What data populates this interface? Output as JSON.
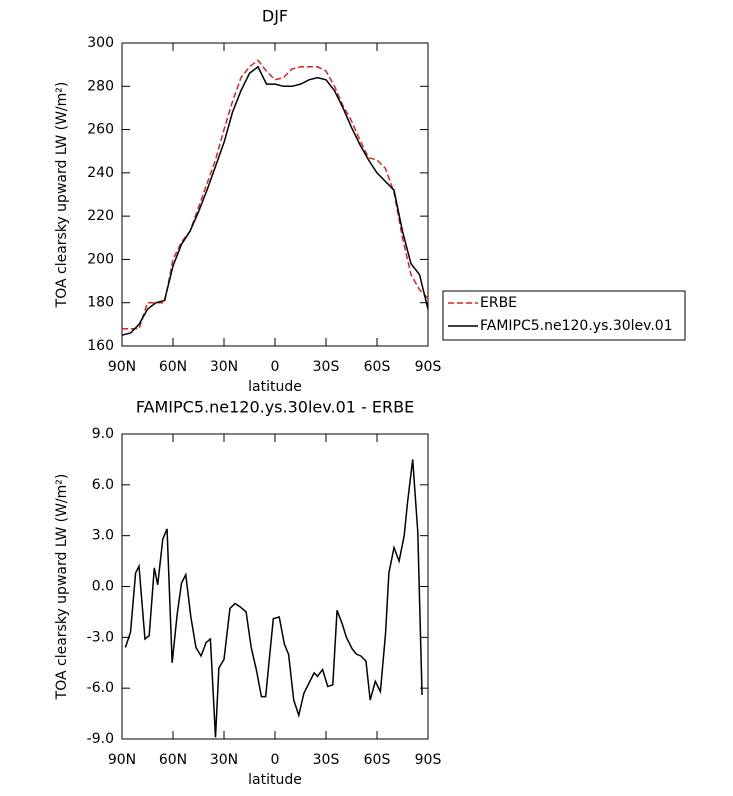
{
  "chart_data": [
    {
      "type": "line",
      "title": "DJF",
      "x_label": "latitude",
      "y_label": "TOA clearsky upward LW (W/m²)",
      "x": [
        90,
        85,
        80,
        75,
        70,
        65,
        60,
        55,
        50,
        45,
        40,
        35,
        30,
        25,
        20,
        15,
        10,
        5,
        0,
        -5,
        -10,
        -15,
        -20,
        -25,
        -30,
        -35,
        -40,
        -45,
        -50,
        -55,
        -60,
        -65,
        -70,
        -75,
        -80,
        -85,
        -90
      ],
      "xlim": [
        90,
        -90
      ],
      "xticks": [
        {
          "value": 90,
          "label": "90N"
        },
        {
          "value": 60,
          "label": "60N"
        },
        {
          "value": 30,
          "label": "30N"
        },
        0,
        {
          "value": -30,
          "label": "30S"
        },
        {
          "value": -60,
          "label": "60S"
        },
        {
          "value": -90,
          "label": "90S"
        }
      ],
      "ylim": [
        160,
        300
      ],
      "yticks": [
        160,
        180,
        200,
        220,
        240,
        260,
        280,
        300
      ],
      "legend": "right",
      "series": [
        {
          "name": "ERBE",
          "color": "#e02020",
          "line_style": "dashed",
          "values": [
            168,
            168,
            168,
            180,
            180,
            180,
            200,
            208,
            213,
            224,
            235,
            246,
            260,
            273,
            284,
            289,
            292,
            287,
            283,
            284,
            288,
            289,
            289,
            289,
            287,
            280,
            271,
            264,
            255,
            247,
            246,
            242,
            231,
            210,
            193,
            186,
            182
          ]
        },
        {
          "name": "FAMIPC5.ne120.ys.30lev.01",
          "color": "#000000",
          "line_style": "solid",
          "values": [
            165,
            166,
            170,
            177,
            180,
            181,
            197,
            207,
            213,
            222,
            232,
            243,
            254,
            268,
            278,
            286,
            289,
            281,
            281,
            280,
            280,
            281,
            283,
            284,
            283,
            278,
            270,
            261,
            253,
            246,
            240,
            236,
            232,
            213,
            198,
            193,
            177
          ]
        }
      ]
    },
    {
      "type": "line",
      "title": "FAMIPC5.ne120.ys.30lev.01 - ERBE",
      "x_label": "latitude",
      "y_label": "TOA clearsky upward LW (W/m²)",
      "x": [
        88,
        85,
        82,
        80,
        76.5,
        74,
        71,
        69,
        66,
        63.5,
        60.5,
        57.5,
        55,
        52.5,
        49.5,
        46.5,
        43.5,
        40.5,
        38,
        35,
        33,
        30,
        26.5,
        23.5,
        20.5,
        17,
        14,
        11,
        8,
        5.5,
        1,
        -2.5,
        -5.5,
        -8,
        -11,
        -14,
        -17,
        -19.5,
        -23,
        -25,
        -28,
        -31,
        -34,
        -36.5,
        -39.5,
        -42,
        -45.5,
        -48,
        -50.5,
        -53.5,
        -56,
        -59,
        -62,
        -65,
        -67,
        -70,
        -73,
        -76,
        -78,
        -81,
        -84,
        -86.5
      ],
      "xlim": [
        90,
        -90
      ],
      "xticks": [
        {
          "value": 90,
          "label": "90N"
        },
        {
          "value": 60,
          "label": "60N"
        },
        {
          "value": 30,
          "label": "30N"
        },
        0,
        {
          "value": -30,
          "label": "30S"
        },
        {
          "value": -60,
          "label": "60S"
        },
        {
          "value": -90,
          "label": "90S"
        }
      ],
      "ylim": [
        -9,
        9
      ],
      "yticks": [
        {
          "value": -9,
          "label": "-9.0"
        },
        {
          "value": -6,
          "label": "-6.0"
        },
        {
          "value": -3,
          "label": "-3.0"
        },
        {
          "value": 0,
          "label": "0.0"
        },
        {
          "value": 3,
          "label": "3.0"
        },
        {
          "value": 6,
          "label": "6.0"
        },
        {
          "value": 9,
          "label": "9.0"
        }
      ],
      "series": [
        {
          "color": "#000000",
          "line_style": "solid",
          "values": [
            -3.6,
            -2.7,
            0.8,
            1.2,
            -3.1,
            -2.9,
            1.1,
            0.1,
            2.8,
            3.4,
            -4.5,
            -1.6,
            0.2,
            0.7,
            -1.8,
            -3.6,
            -4.1,
            -3.3,
            -3.1,
            -8.9,
            -4.8,
            -4.3,
            -1.3,
            -1.0,
            -1.2,
            -1.5,
            -3.6,
            -4.9,
            -6.5,
            -6.5,
            -1.9,
            -1.8,
            -3.4,
            -4.0,
            -6.7,
            -7.6,
            -6.3,
            -5.8,
            -5.1,
            -5.3,
            -4.9,
            -5.9,
            -5.8,
            -1.4,
            -2.2,
            -3.0,
            -3.7,
            -4.0,
            -4.1,
            -4.4,
            -6.7,
            -5.6,
            -6.2,
            -2.8,
            0.8,
            2.3,
            1.5,
            3.0,
            5.0,
            7.5,
            3.2,
            -6.4
          ]
        }
      ]
    }
  ]
}
